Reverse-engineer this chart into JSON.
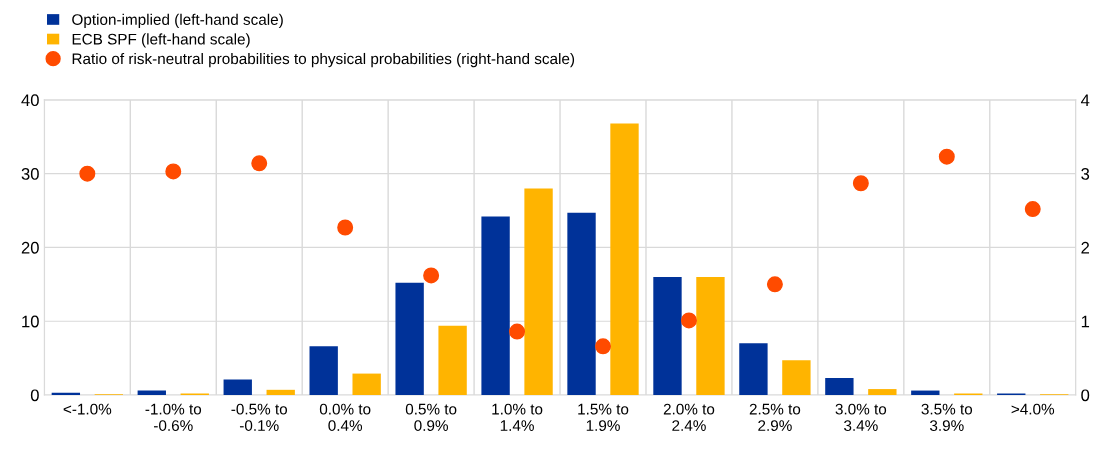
{
  "chart_data": {
    "type": "bar",
    "categories": [
      "<-1.0%",
      "-1.0% to\n-0.6%",
      "-0.5% to\n-0.1%",
      "0.0% to\n0.4%",
      "0.5% to\n0.9%",
      "1.0% to\n1.4%",
      "1.5% to\n1.9%",
      "2.0% to\n2.4%",
      "2.5% to\n2.9%",
      "3.0% to\n3.4%",
      "3.5% to\n3.9%",
      ">4.0%"
    ],
    "series": [
      {
        "name": "Option-implied (left-hand scale)",
        "color": "#003299",
        "values": [
          0.3,
          0.6,
          2.1,
          6.6,
          15.2,
          24.2,
          24.7,
          16.0,
          7.0,
          2.3,
          0.6,
          0.2
        ]
      },
      {
        "name": "ECB SPF (left-hand scale)",
        "color": "#ffb400",
        "values": [
          0.1,
          0.2,
          0.7,
          2.9,
          9.4,
          28.0,
          36.8,
          16.0,
          4.7,
          0.8,
          0.2,
          0.1
        ]
      },
      {
        "name": "Ratio of risk-neutral probabilities to physical probabilities (right-hand scale)",
        "type": "scatter",
        "axis": "y2",
        "color": "#ff4b00",
        "marker": "circle",
        "values": [
          3.0,
          3.03,
          3.14,
          2.27,
          1.62,
          0.86,
          0.66,
          1.01,
          1.5,
          2.87,
          3.23,
          2.52
        ]
      }
    ],
    "ylim": [
      0,
      40
    ],
    "yticks": [
      0,
      10,
      20,
      30,
      40
    ],
    "y2lim": [
      0,
      4
    ],
    "y2ticks": [
      0,
      1,
      2,
      3,
      4
    ],
    "grid": true,
    "legend": "top left"
  }
}
